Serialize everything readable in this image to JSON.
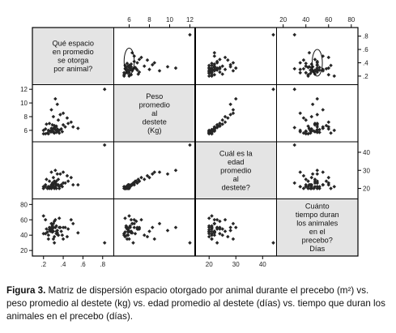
{
  "chart_data": {
    "type": "scatter-matrix",
    "variables": [
      {
        "label_lines": [
          "Qué espacio",
          "en promedio",
          "se otorga",
          "por animal?"
        ],
        "ticks": [
          0.2,
          0.4,
          0.6,
          0.8
        ],
        "tick_labels": [
          ".2",
          ".4",
          ".6",
          ".8"
        ],
        "range": [
          0.12,
          0.88
        ]
      },
      {
        "label_lines": [
          "Peso",
          "promedio",
          "al",
          "destete",
          "(Kg)"
        ],
        "ticks": [
          6,
          8,
          10,
          12
        ],
        "tick_labels": [
          "6",
          "8",
          "10",
          "12"
        ],
        "range": [
          4.8,
          12.2
        ]
      },
      {
        "label_lines": [
          "Cuál es la",
          "edad",
          "promedio",
          "al",
          "destete?"
        ],
        "ticks": [
          20,
          30,
          40
        ],
        "tick_labels": [
          "20",
          "30",
          "40"
        ],
        "range": [
          16,
          44
        ]
      },
      {
        "label_lines": [
          "Cuánto",
          "tiempo duran",
          "los animales",
          "en el",
          "precebo?",
          "Días"
        ],
        "ticks": [
          20,
          40,
          60,
          80
        ],
        "tick_labels": [
          "20",
          "40",
          "60",
          "80"
        ],
        "range": [
          17,
          83
        ]
      }
    ],
    "observations": [
      [
        0.28,
        6.0,
        20,
        45
      ],
      [
        0.3,
        5.7,
        21,
        50
      ],
      [
        0.25,
        5.5,
        21,
        40
      ],
      [
        0.32,
        6.1,
        21,
        50
      ],
      [
        0.35,
        5.9,
        22,
        40
      ],
      [
        0.28,
        5.8,
        20,
        50
      ],
      [
        0.3,
        6.3,
        22,
        55
      ],
      [
        0.22,
        5.5,
        21,
        42
      ],
      [
        0.27,
        5.8,
        21,
        48
      ],
      [
        0.33,
        6.0,
        22,
        45
      ],
      [
        0.29,
        6.1,
        21,
        52
      ],
      [
        0.31,
        5.6,
        20,
        38
      ],
      [
        0.26,
        5.9,
        20,
        47
      ],
      [
        0.34,
        6.2,
        22,
        43
      ],
      [
        0.36,
        6.0,
        21,
        50
      ],
      [
        0.24,
        5.6,
        20,
        44
      ],
      [
        0.32,
        6.5,
        23,
        60
      ],
      [
        0.38,
        6.2,
        22,
        45
      ],
      [
        0.3,
        5.8,
        21,
        35
      ],
      [
        0.28,
        6.3,
        22,
        55
      ],
      [
        0.4,
        6.8,
        23,
        50
      ],
      [
        0.45,
        7.0,
        24,
        48
      ],
      [
        0.2,
        5.5,
        20,
        42
      ],
      [
        0.42,
        6.5,
        23,
        50
      ],
      [
        0.27,
        5.9,
        21,
        45
      ],
      [
        0.31,
        6.7,
        24,
        58
      ],
      [
        0.35,
        7.5,
        25,
        40
      ],
      [
        0.48,
        7.2,
        26,
        60
      ],
      [
        0.25,
        6.0,
        21,
        35
      ],
      [
        0.29,
        6.8,
        23,
        48
      ],
      [
        0.33,
        5.7,
        20,
        52
      ],
      [
        0.3,
        8.0,
        26,
        45
      ],
      [
        0.37,
        8.3,
        28,
        50
      ],
      [
        0.5,
        6.5,
        22,
        55
      ],
      [
        0.44,
        7.8,
        27,
        38
      ],
      [
        0.22,
        6.2,
        22,
        60
      ],
      [
        0.26,
        7.0,
        24,
        50
      ],
      [
        0.39,
        5.8,
        21,
        40
      ],
      [
        0.55,
        6.3,
        22,
        43
      ],
      [
        0.28,
        9.0,
        29,
        55
      ],
      [
        0.34,
        9.8,
        28,
        46
      ],
      [
        0.31,
        6.4,
        23,
        30
      ],
      [
        0.36,
        5.6,
        20,
        62
      ],
      [
        0.23,
        6.9,
        25,
        48
      ],
      [
        0.4,
        8.5,
        29,
        35
      ],
      [
        0.32,
        10.6,
        30,
        50
      ],
      [
        0.82,
        12.0,
        44,
        30
      ],
      [
        0.2,
        6.0,
        21,
        65
      ],
      [
        0.33,
        6.6,
        24,
        42
      ],
      [
        0.29,
        5.9,
        22,
        44
      ]
    ],
    "ellipses": [
      {
        "row": 0,
        "col": 1,
        "cx": 6.0,
        "cy": 0.42,
        "rx": 0.5,
        "ry": 0.2
      },
      {
        "row": 0,
        "col": 3,
        "cx": 50,
        "cy": 0.4,
        "rx": 4.5,
        "ry": 0.2
      }
    ]
  },
  "caption": {
    "label": "Figura 3.",
    "text": " Matriz de dispersión espacio otorgado por animal durante el precebo (m²) vs. peso promedio al destete (kg) vs. edad promedio al destete (días) vs. tiempo que duran los animales en el precebo (días)."
  }
}
